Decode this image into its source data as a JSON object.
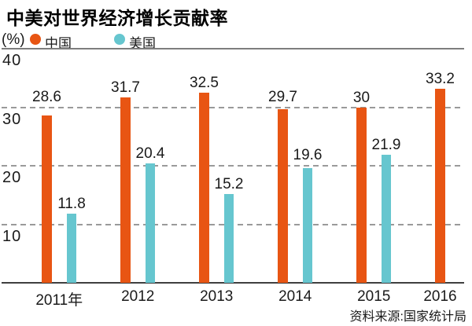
{
  "title": "中美对世界经济增长贡献率",
  "legend": {
    "unit_label": "(%)",
    "items": [
      {
        "key": "china",
        "label": "中国",
        "color": "#e85513"
      },
      {
        "key": "us",
        "label": "美国",
        "color": "#66c6cf"
      }
    ]
  },
  "source": "资料来源:国家统计局",
  "chart_data": {
    "type": "bar",
    "title": "中美对世界经济增长贡献率",
    "ylabel": "(%)",
    "categories": [
      "2011年",
      "2012",
      "2013",
      "2014",
      "2015",
      "2016"
    ],
    "series": [
      {
        "key": "china",
        "name": "中国",
        "color": "#e85513",
        "values": [
          28.6,
          31.7,
          32.5,
          29.7,
          30,
          33.2
        ]
      },
      {
        "key": "us",
        "name": "美国",
        "color": "#66c6cf",
        "values": [
          11.8,
          20.4,
          15.2,
          19.6,
          21.9,
          null
        ]
      }
    ],
    "ylim": [
      0,
      40
    ],
    "yticks": [
      40,
      30,
      20,
      10
    ],
    "grid": "horizontal-dashed",
    "legend_position": "top-left",
    "source": "资料来源:国家统计局"
  }
}
